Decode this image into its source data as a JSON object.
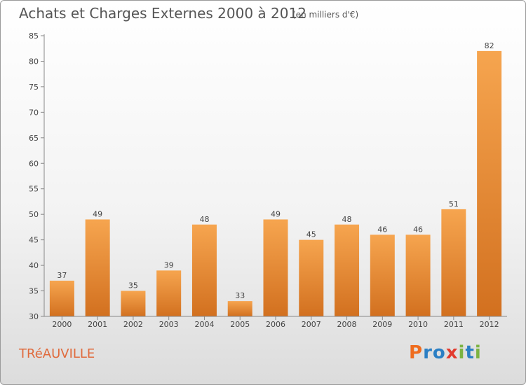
{
  "header": {
    "title": "Achats et Charges Externes 2000 à 2012",
    "subtitle": "(en milliers d'€)"
  },
  "footer": {
    "commune": "TRéAUVILLE",
    "logo": [
      "P",
      "r",
      "o",
      "x",
      "i",
      "t",
      "i"
    ]
  },
  "colors": {
    "bar_top": "#f6a54f",
    "bar_bottom": "#d2701f",
    "axis": "#888888",
    "grid": "#c8c8c8",
    "commune": "#e06a3c",
    "logo": [
      "#ef6c1e",
      "#2b7fc4",
      "#2b7fc4",
      "#e23b2e",
      "#7cb342",
      "#2b7fc4",
      "#7cb342"
    ]
  },
  "chart_data": {
    "type": "bar",
    "title": "Achats et Charges Externes 2000 à 2012",
    "subtitle": "(en milliers d'€)",
    "categories": [
      "2000",
      "2001",
      "2002",
      "2003",
      "2004",
      "2005",
      "2006",
      "2007",
      "2008",
      "2009",
      "2010",
      "2011",
      "2012"
    ],
    "values": [
      37,
      49,
      35,
      39,
      48,
      33,
      49,
      45,
      48,
      46,
      46,
      51,
      82
    ],
    "ylim": [
      30,
      85
    ],
    "yticks": [
      30,
      35,
      40,
      45,
      50,
      55,
      60,
      65,
      70,
      75,
      80,
      85
    ],
    "grid": false,
    "data_labels": true
  }
}
